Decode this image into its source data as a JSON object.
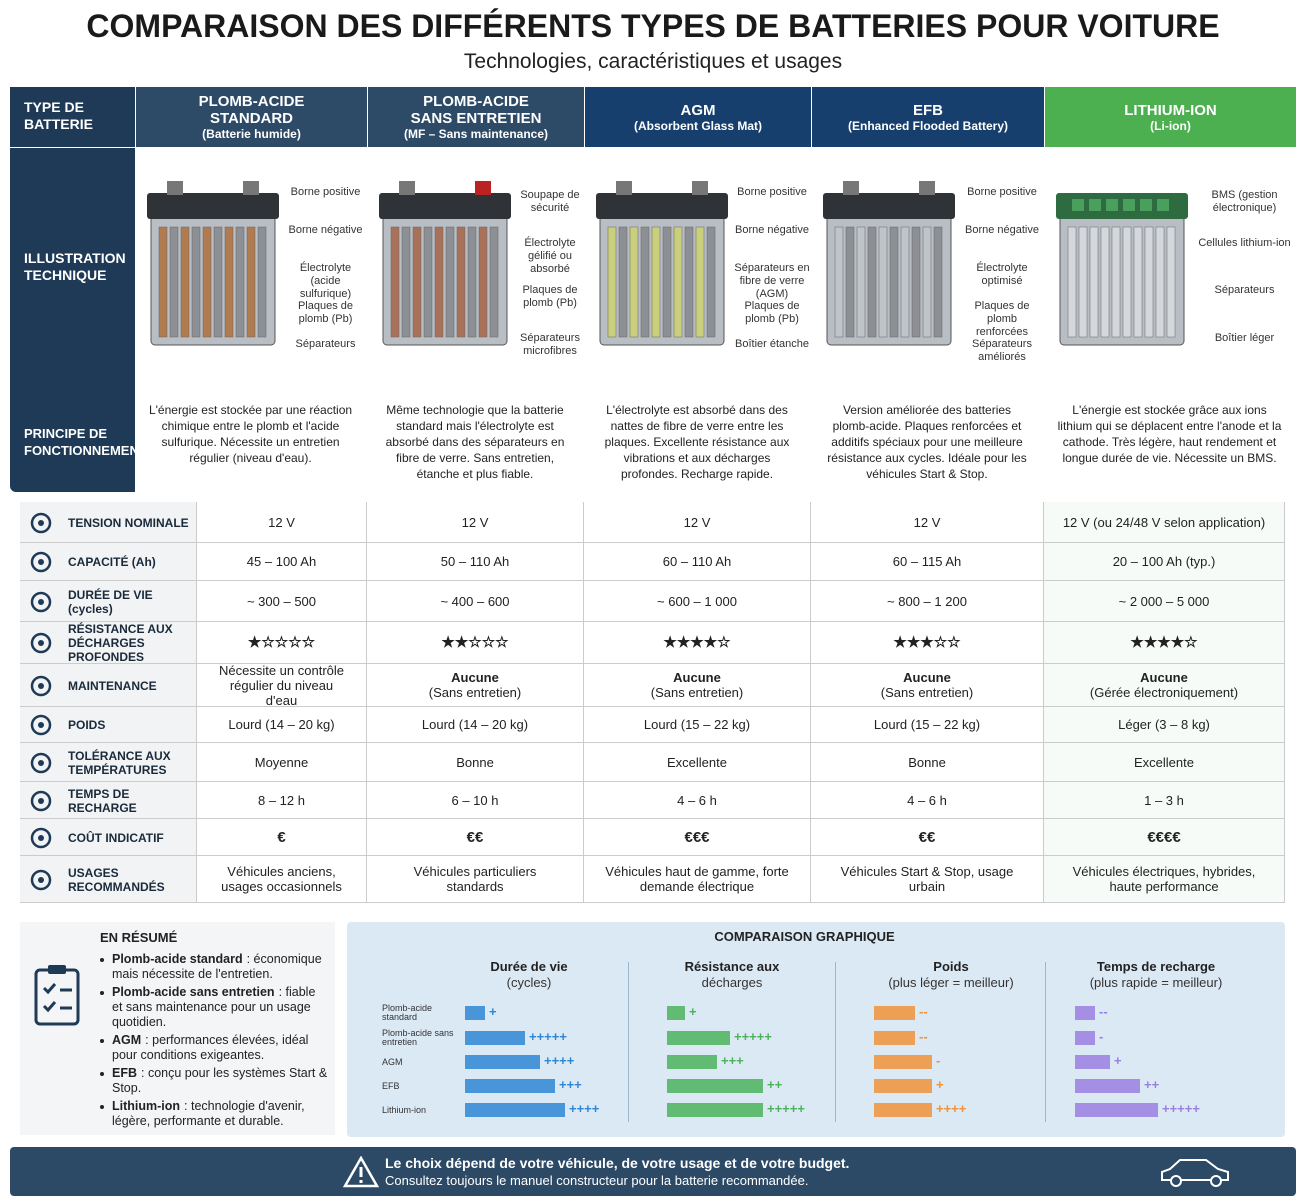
{
  "title": "COMPARAISON DES DIFFÉRENTS TYPES DE BATTERIES POUR VOITURE",
  "subtitle": "Technologies, caractéristiques et usages",
  "header": {
    "label": "TYPE DE BATTERIE",
    "columns": [
      {
        "name": "PLOMB-ACIDE STANDARD",
        "sub": "(Batterie humide)",
        "color": "#2d4a66"
      },
      {
        "name": "PLOMB-ACIDE SANS ENTRETIEN",
        "sub": "(MF – Sans maintenance)",
        "color": "#2d4a66"
      },
      {
        "name": "AGM",
        "sub": "(Absorbent Glass Mat)",
        "color": "#173f6e"
      },
      {
        "name": "EFB",
        "sub": "(Enhanced Flooded Battery)",
        "color": "#173f6e"
      },
      {
        "name": "LITHIUM-ION",
        "sub": "(Li-ion)",
        "color": "#4caf50"
      }
    ]
  },
  "illustration": {
    "label": "ILLUSTRATION TECHNIQUE",
    "callouts": [
      [
        "Borne positive",
        "Borne négative",
        "Électrolyte (acide sulfurique)",
        "Plaques de plomb (Pb)",
        "Séparateurs"
      ],
      [
        "Soupape de sécurité",
        "Électrolyte gélifié ou absorbé",
        "Plaques de plomb (Pb)",
        "Séparateurs microfibres"
      ],
      [
        "Borne positive",
        "Borne négative",
        "Séparateurs en fibre de verre (AGM)",
        "Plaques de plomb (Pb)",
        "Boîtier étanche"
      ],
      [
        "Borne positive",
        "Borne négative",
        "Électrolyte optimisé",
        "Plaques de plomb renforcées",
        "Séparateurs améliorés"
      ],
      [
        "BMS (gestion électronique)",
        "Cellules lithium-ion",
        "Séparateurs",
        "Boîtier léger"
      ]
    ]
  },
  "principle": {
    "label": "PRINCIPE DE FONCTIONNEMENT",
    "texts": [
      "L'énergie est stockée par une réaction chimique entre le plomb et l'acide sulfurique. Nécessite un entretien régulier (niveau d'eau).",
      "Même technologie que la batterie standard mais l'électrolyte est absorbé dans des séparateurs en fibre de verre. Sans entretien, étanche et plus fiable.",
      "L'électrolyte est absorbé dans des nattes de fibre de verre entre les plaques. Excellente résistance aux vibrations et aux décharges profondes. Recharge rapide.",
      "Version améliorée des batteries plomb-acide. Plaques renforcées et additifs spéciaux pour une meilleure résistance aux cycles. Idéale pour les véhicules Start & Stop.",
      "L'énergie est stockée grâce aux ions lithium qui se déplacent entre l'anode et la cathode. Très légère, haut rendement et longue durée de vie. Nécessite un BMS."
    ]
  },
  "rows": [
    {
      "label": "TENSION NOMINALE",
      "cells": [
        "12 V",
        "12 V",
        "12 V",
        "12 V",
        "12 V (ou 24/48 V selon application)"
      ]
    },
    {
      "label": "CAPACITÉ (Ah)",
      "cells": [
        "45 – 100 Ah",
        "50 – 110 Ah",
        "60 – 110 Ah",
        "60 – 115 Ah",
        "20 – 100 Ah (typ.)"
      ]
    },
    {
      "label": "DURÉE DE VIE (cycles)",
      "cells": [
        "~ 300 – 500",
        "~ 400 – 600",
        "~ 600 – 1 000",
        "~ 800 – 1 200",
        "~ 2 000 – 5 000"
      ]
    },
    {
      "label": "RÉSISTANCE AUX DÉCHARGES PROFONDES",
      "cells": [
        "★☆☆☆☆",
        "★★☆☆☆",
        "★★★★☆",
        "★★★☆☆",
        "★★★★☆"
      ]
    },
    {
      "label": "MAINTENANCE",
      "cells": [
        "Nécessite un contrôle régulier du niveau d'eau",
        {
          "main": "Aucune",
          "sub": "(Sans entretien)"
        },
        {
          "main": "Aucune",
          "sub": "(Sans entretien)"
        },
        {
          "main": "Aucune",
          "sub": "(Sans entretien)"
        },
        {
          "main": "Aucune",
          "sub": "(Gérée électroniquement)"
        }
      ]
    },
    {
      "label": "POIDS",
      "cells": [
        "Lourd (14 – 20 kg)",
        "Lourd (14 – 20 kg)",
        "Lourd (15 – 22 kg)",
        "Lourd (15 – 22 kg)",
        "Léger (3 – 8 kg)"
      ]
    },
    {
      "label": "TOLÉRANCE AUX TEMPÉRATURES",
      "cells": [
        "Moyenne",
        "Bonne",
        "Excellente",
        "Bonne",
        "Excellente"
      ]
    },
    {
      "label": "TEMPS DE RECHARGE",
      "cells": [
        "8 – 12 h",
        "6 – 10 h",
        "4 – 6 h",
        "4 – 6 h",
        "1 – 3 h"
      ]
    },
    {
      "label": "COÛT INDICATIF",
      "cells": [
        "€",
        "€€",
        "€€€",
        "€€",
        "€€€€"
      ]
    },
    {
      "label": "USAGES RECOMMANDÉS",
      "cells": [
        "Véhicules anciens, usages occasionnels",
        "Véhicules particuliers standards",
        "Véhicules haut de gamme, forte demande électrique",
        "Véhicules Start & Stop, usage urbain",
        "Véhicules électriques, hybrides, haute performance"
      ]
    }
  ],
  "summary": {
    "title": "EN RÉSUMÉ",
    "items": [
      {
        "term": "Plomb-acide standard",
        "text": ": économique mais nécessite de l'entretien."
      },
      {
        "term": "Plomb-acide sans entretien",
        "text": ": fiable et sans maintenance pour un usage quotidien."
      },
      {
        "term": "AGM",
        "text": ": performances élevées, idéal pour conditions exigeantes."
      },
      {
        "term": "EFB",
        "text": ": conçu pour les systèmes Start & Stop."
      },
      {
        "term": "Lithium-ion",
        "text": ": technologie d'avenir, légère, performante et durable."
      }
    ]
  },
  "graph": {
    "title": "COMPARAISON GRAPHIQUE",
    "categories": [
      "Plomb-acide standard",
      "Plomb-acide sans entretien",
      "AGM",
      "EFB",
      "Lithium-ion"
    ],
    "panels": [
      {
        "title": "Durée de vie",
        "subtitle": "(cycles)",
        "color": "#2f86d4",
        "values": [
          20,
          60,
          75,
          90,
          100
        ],
        "marks": [
          "+",
          "+++++",
          "++++",
          "+++",
          "++++"
        ]
      },
      {
        "title": "Résistance aux",
        "subtitle": "décharges",
        "color": "#4cb35a",
        "values": [
          18,
          63,
          50,
          96,
          96
        ],
        "marks": [
          "+",
          "+++++",
          "+++",
          "++",
          "+++++"
        ]
      },
      {
        "title": "Poids",
        "subtitle": "(plus léger = meilleur)",
        "color": "#f0923a",
        "values": [
          41,
          41,
          58,
          58,
          58
        ],
        "marks": [
          "--",
          "--",
          "-",
          "+",
          "++++"
        ]
      },
      {
        "title": "Temps de recharge",
        "subtitle": "(plus rapide = meilleur)",
        "color": "#9a7fe0",
        "values": [
          20,
          20,
          35,
          65,
          83
        ],
        "marks": [
          "--",
          "-",
          "+",
          "++",
          "+++++"
        ]
      }
    ]
  },
  "footer": {
    "line1": "Le choix dépend de votre véhicule, de votre usage et de votre budget.",
    "line2": "Consultez toujours le manuel constructeur pour la batterie recommandée."
  }
}
